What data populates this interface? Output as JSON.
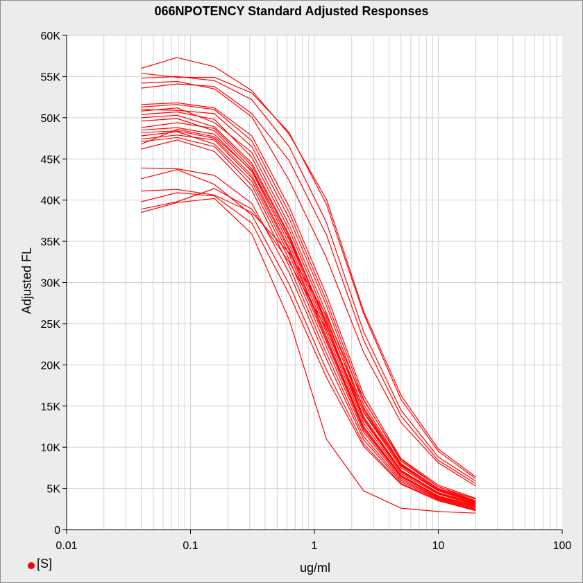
{
  "chart_data": {
    "type": "line",
    "title": "066NPOTENCY Standard Adjusted Responses",
    "xlabel": "ug/ml",
    "ylabel": "Adjusted FL",
    "x_scale": "log",
    "xlim": [
      0.01,
      100
    ],
    "ylim": [
      0,
      60000
    ],
    "x_ticks": [
      0.01,
      0.1,
      1,
      10,
      100
    ],
    "x_tick_labels": [
      "0.01",
      "0.1",
      "1",
      "10",
      "100"
    ],
    "y_ticks": [
      0,
      5000,
      10000,
      15000,
      20000,
      25000,
      30000,
      35000,
      40000,
      45000,
      50000,
      55000,
      60000
    ],
    "y_tick_labels": [
      "0",
      "5K",
      "10K",
      "15K",
      "20K",
      "25K",
      "30K",
      "35K",
      "40K",
      "45K",
      "50K",
      "55K",
      "60K"
    ],
    "grid": true,
    "line_color": "#ff0000",
    "x": [
      0.04,
      0.078,
      0.156,
      0.3125,
      0.625,
      1.25,
      2.5,
      5,
      10,
      20
    ],
    "series": [
      {
        "values": [
          56000,
          57300,
          56200,
          53300,
          48000,
          40100,
          26500,
          16300,
          9800,
          6400
        ]
      },
      {
        "values": [
          55400,
          54900,
          54900,
          53000,
          48200,
          39500,
          26200,
          15800,
          9500,
          6200
        ]
      },
      {
        "values": [
          54800,
          55000,
          54500,
          52200,
          46500,
          37300,
          24000,
          14500,
          8800,
          5900
        ]
      },
      {
        "values": [
          54200,
          54400,
          53500,
          50100,
          42400,
          33000,
          21500,
          13000,
          8100,
          5300
        ]
      },
      {
        "values": [
          53600,
          54100,
          53800,
          50500,
          44800,
          35800,
          23000,
          13800,
          8400,
          5600
        ]
      },
      {
        "values": [
          51600,
          51800,
          51200,
          47800,
          39200,
          28500,
          16300,
          8600,
          5400,
          3800
        ]
      },
      {
        "values": [
          51300,
          51600,
          51000,
          47200,
          38500,
          27800,
          15800,
          8300,
          5200,
          3700
        ]
      },
      {
        "values": [
          51000,
          50900,
          50500,
          46500,
          37800,
          27200,
          15200,
          8000,
          5000,
          3500
        ]
      },
      {
        "values": [
          50800,
          51200,
          49400,
          45800,
          37000,
          26300,
          14600,
          7700,
          4800,
          3400
        ]
      },
      {
        "values": [
          50400,
          50700,
          49800,
          45200,
          36400,
          25700,
          14200,
          7500,
          4700,
          3300
        ]
      },
      {
        "values": [
          50000,
          50300,
          48900,
          44500,
          35800,
          25000,
          13700,
          7200,
          4500,
          3200
        ]
      },
      {
        "values": [
          49600,
          49900,
          48400,
          43800,
          35200,
          24400,
          13300,
          7000,
          4400,
          3100
        ]
      },
      {
        "values": [
          48800,
          49400,
          48700,
          44200,
          35600,
          24800,
          13500,
          7100,
          4400,
          3100
        ]
      },
      {
        "values": [
          48500,
          48800,
          48000,
          43500,
          34700,
          23900,
          12900,
          6800,
          4300,
          3000
        ]
      },
      {
        "values": [
          48200,
          48400,
          47500,
          43000,
          34200,
          23400,
          12500,
          6600,
          4100,
          2900
        ]
      },
      {
        "values": [
          47800,
          48300,
          46800,
          42300,
          33400,
          22800,
          12100,
          6400,
          4000,
          2800
        ]
      },
      {
        "values": [
          47400,
          47900,
          47300,
          42700,
          33900,
          23100,
          12300,
          6500,
          4100,
          2900
        ]
      },
      {
        "values": [
          47100,
          47600,
          46500,
          41800,
          32800,
          22200,
          11800,
          6200,
          3900,
          2700
        ]
      },
      {
        "values": [
          46800,
          48600,
          47700,
          43600,
          35300,
          25300,
          14800,
          7900,
          4900,
          3400
        ]
      },
      {
        "values": [
          46200,
          47300,
          45900,
          41200,
          32000,
          21400,
          11300,
          6000,
          3800,
          2600
        ]
      },
      {
        "values": [
          43900,
          43800,
          43000,
          39600,
          31200,
          20700,
          10900,
          5800,
          3700,
          2500
        ]
      },
      {
        "values": [
          42600,
          43700,
          41900,
          38200,
          29800,
          19400,
          10400,
          5600,
          3600,
          2400
        ]
      },
      {
        "values": [
          41100,
          41300,
          40600,
          38500,
          33600,
          26000,
          15700,
          8500,
          5200,
          3500
        ]
      },
      {
        "values": [
          39800,
          40900,
          40500,
          37200,
          28600,
          18500,
          10100,
          5500,
          3500,
          2300
        ]
      },
      {
        "values": [
          38900,
          39800,
          41400,
          38900,
          32500,
          24300,
          14300,
          7800,
          4700,
          3300
        ]
      },
      {
        "values": [
          38500,
          39700,
          40200,
          35900,
          25500,
          11000,
          4700,
          2600,
          2200,
          2000
        ]
      }
    ],
    "legend": [
      {
        "label": "[S]",
        "marker": "filled-circle",
        "color": "#ff0000"
      }
    ],
    "legend_position": "bottom-left"
  }
}
